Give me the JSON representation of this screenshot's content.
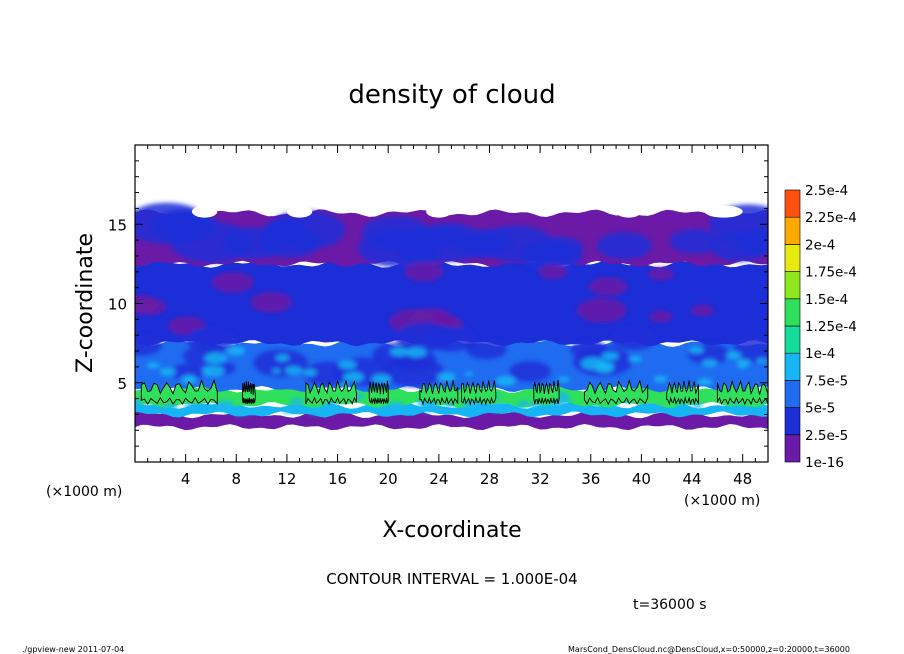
{
  "chart_data": {
    "type": "heatmap",
    "title": "density of cloud",
    "xlabel": "X-coordinate",
    "ylabel": "Z-coordinate",
    "x_unit": "(×1000 m)",
    "x_unit_right": "(×1000 m)",
    "xlim": [
      0,
      50
    ],
    "ylim": [
      0,
      20
    ],
    "x_ticks": [
      4,
      8,
      12,
      16,
      20,
      24,
      28,
      32,
      36,
      40,
      44,
      48
    ],
    "y_ticks": [
      5,
      10,
      15
    ],
    "legend_placement": "right",
    "colorbar": [
      {
        "label": "1e-16",
        "color": "#6a1aa6"
      },
      {
        "label": "2.5e-5",
        "color": "#1c2ed8"
      },
      {
        "label": "5e-5",
        "color": "#1f6cf0"
      },
      {
        "label": "7.5e-5",
        "color": "#15b6f4"
      },
      {
        "label": "1e-4",
        "color": "#12dd9a"
      },
      {
        "label": "1.25e-4",
        "color": "#2ee05a"
      },
      {
        "label": "1.5e-4",
        "color": "#8fe81c"
      },
      {
        "label": "1.75e-4",
        "color": "#e6ea10"
      },
      {
        "label": "2e-4",
        "color": "#ffa800"
      },
      {
        "label": "2.25e-4",
        "color": "#ff5010"
      },
      {
        "label": "2.5e-4",
        "color": "#ff9aa0"
      }
    ],
    "cloud_layers": [
      {
        "name": "",
        "z_range": [
          2.2,
          3.0
        ],
        "level": "1e-16"
      },
      {
        "name": "",
        "z_range": [
          3.0,
          3.6
        ],
        "level": "7.5e-5"
      },
      {
        "name": "",
        "z_range": [
          3.6,
          4.6
        ],
        "level": "1.25e-4"
      },
      {
        "name": "",
        "z_range": [
          4.6,
          7.5
        ],
        "level": "5e-5"
      },
      {
        "name": "",
        "z_range": [
          7.5,
          12.5
        ],
        "level": "2.5e-5"
      },
      {
        "name": "",
        "z_range": [
          12.5,
          15.7
        ],
        "level": "1e-16"
      }
    ],
    "contour_interval": "CONTOUR INTERVAL = 1.000E-04",
    "time": "t=36000 s"
  },
  "footer": {
    "left": "./gpview-new   2011-07-04",
    "right": "MarsCond_DensCloud.nc@DensCloud,x=0:50000,z=0:20000,t=36000"
  }
}
